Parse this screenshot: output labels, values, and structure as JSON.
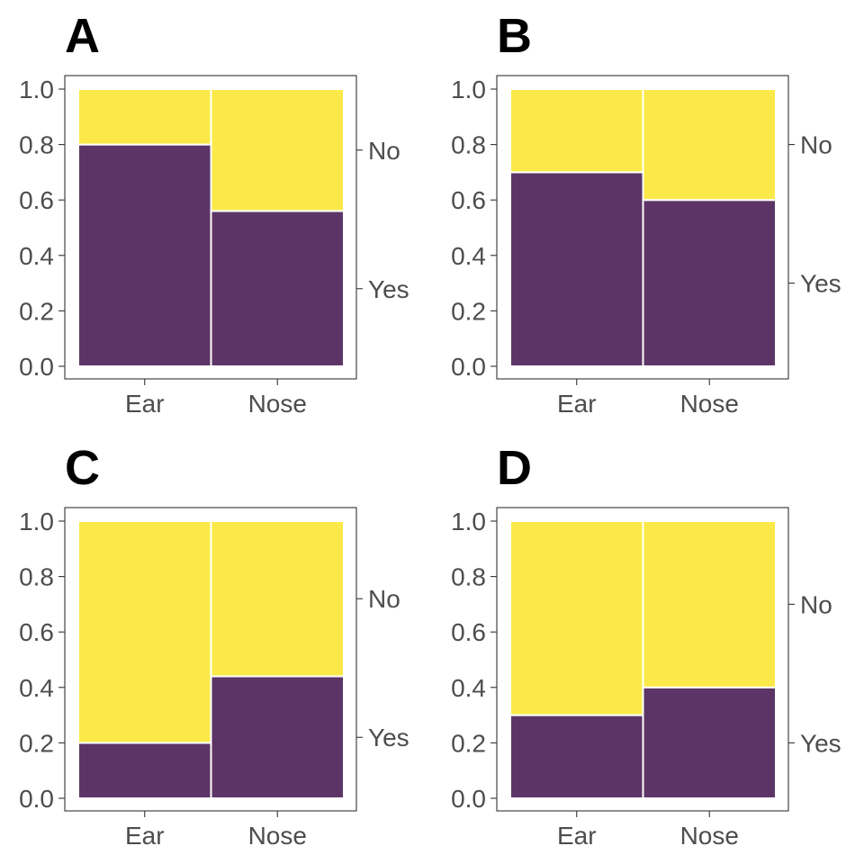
{
  "colors": {
    "Yes": "#5c3566",
    "No": "#fbe94a"
  },
  "chart_data": [
    {
      "type": "mosaic",
      "panel": "A",
      "categories": [
        "Ear",
        "Nose"
      ],
      "category_widths": [
        0.5,
        0.5
      ],
      "fill_levels": [
        "Yes",
        "No"
      ],
      "proportions": {
        "Yes": [
          0.8,
          0.56
        ],
        "No": [
          0.2,
          0.44
        ]
      },
      "right_labels": [
        "No",
        "Yes"
      ],
      "right_label_values": [
        0.78,
        0.28
      ],
      "yticks": [
        "0.0",
        "0.2",
        "0.4",
        "0.6",
        "0.8",
        "1.0"
      ],
      "ylim": [
        0,
        1
      ]
    },
    {
      "type": "mosaic",
      "panel": "B",
      "categories": [
        "Ear",
        "Nose"
      ],
      "category_widths": [
        0.5,
        0.5
      ],
      "fill_levels": [
        "Yes",
        "No"
      ],
      "proportions": {
        "Yes": [
          0.7,
          0.6
        ],
        "No": [
          0.3,
          0.4
        ]
      },
      "right_labels": [
        "No",
        "Yes"
      ],
      "right_label_values": [
        0.8,
        0.3
      ],
      "yticks": [
        "0.0",
        "0.2",
        "0.4",
        "0.6",
        "0.8",
        "1.0"
      ],
      "ylim": [
        0,
        1
      ]
    },
    {
      "type": "mosaic",
      "panel": "C",
      "categories": [
        "Ear",
        "Nose"
      ],
      "category_widths": [
        0.5,
        0.5
      ],
      "fill_levels": [
        "Yes",
        "No"
      ],
      "proportions": {
        "Yes": [
          0.2,
          0.44
        ],
        "No": [
          0.8,
          0.56
        ]
      },
      "right_labels": [
        "No",
        "Yes"
      ],
      "right_label_values": [
        0.72,
        0.22
      ],
      "yticks": [
        "0.0",
        "0.2",
        "0.4",
        "0.6",
        "0.8",
        "1.0"
      ],
      "ylim": [
        0,
        1
      ]
    },
    {
      "type": "mosaic",
      "panel": "D",
      "categories": [
        "Ear",
        "Nose"
      ],
      "category_widths": [
        0.5,
        0.5
      ],
      "fill_levels": [
        "Yes",
        "No"
      ],
      "proportions": {
        "Yes": [
          0.3,
          0.4
        ],
        "No": [
          0.7,
          0.6
        ]
      },
      "right_labels": [
        "No",
        "Yes"
      ],
      "right_label_values": [
        0.7,
        0.2
      ],
      "yticks": [
        "0.0",
        "0.2",
        "0.4",
        "0.6",
        "0.8",
        "1.0"
      ],
      "ylim": [
        0,
        1
      ]
    }
  ]
}
